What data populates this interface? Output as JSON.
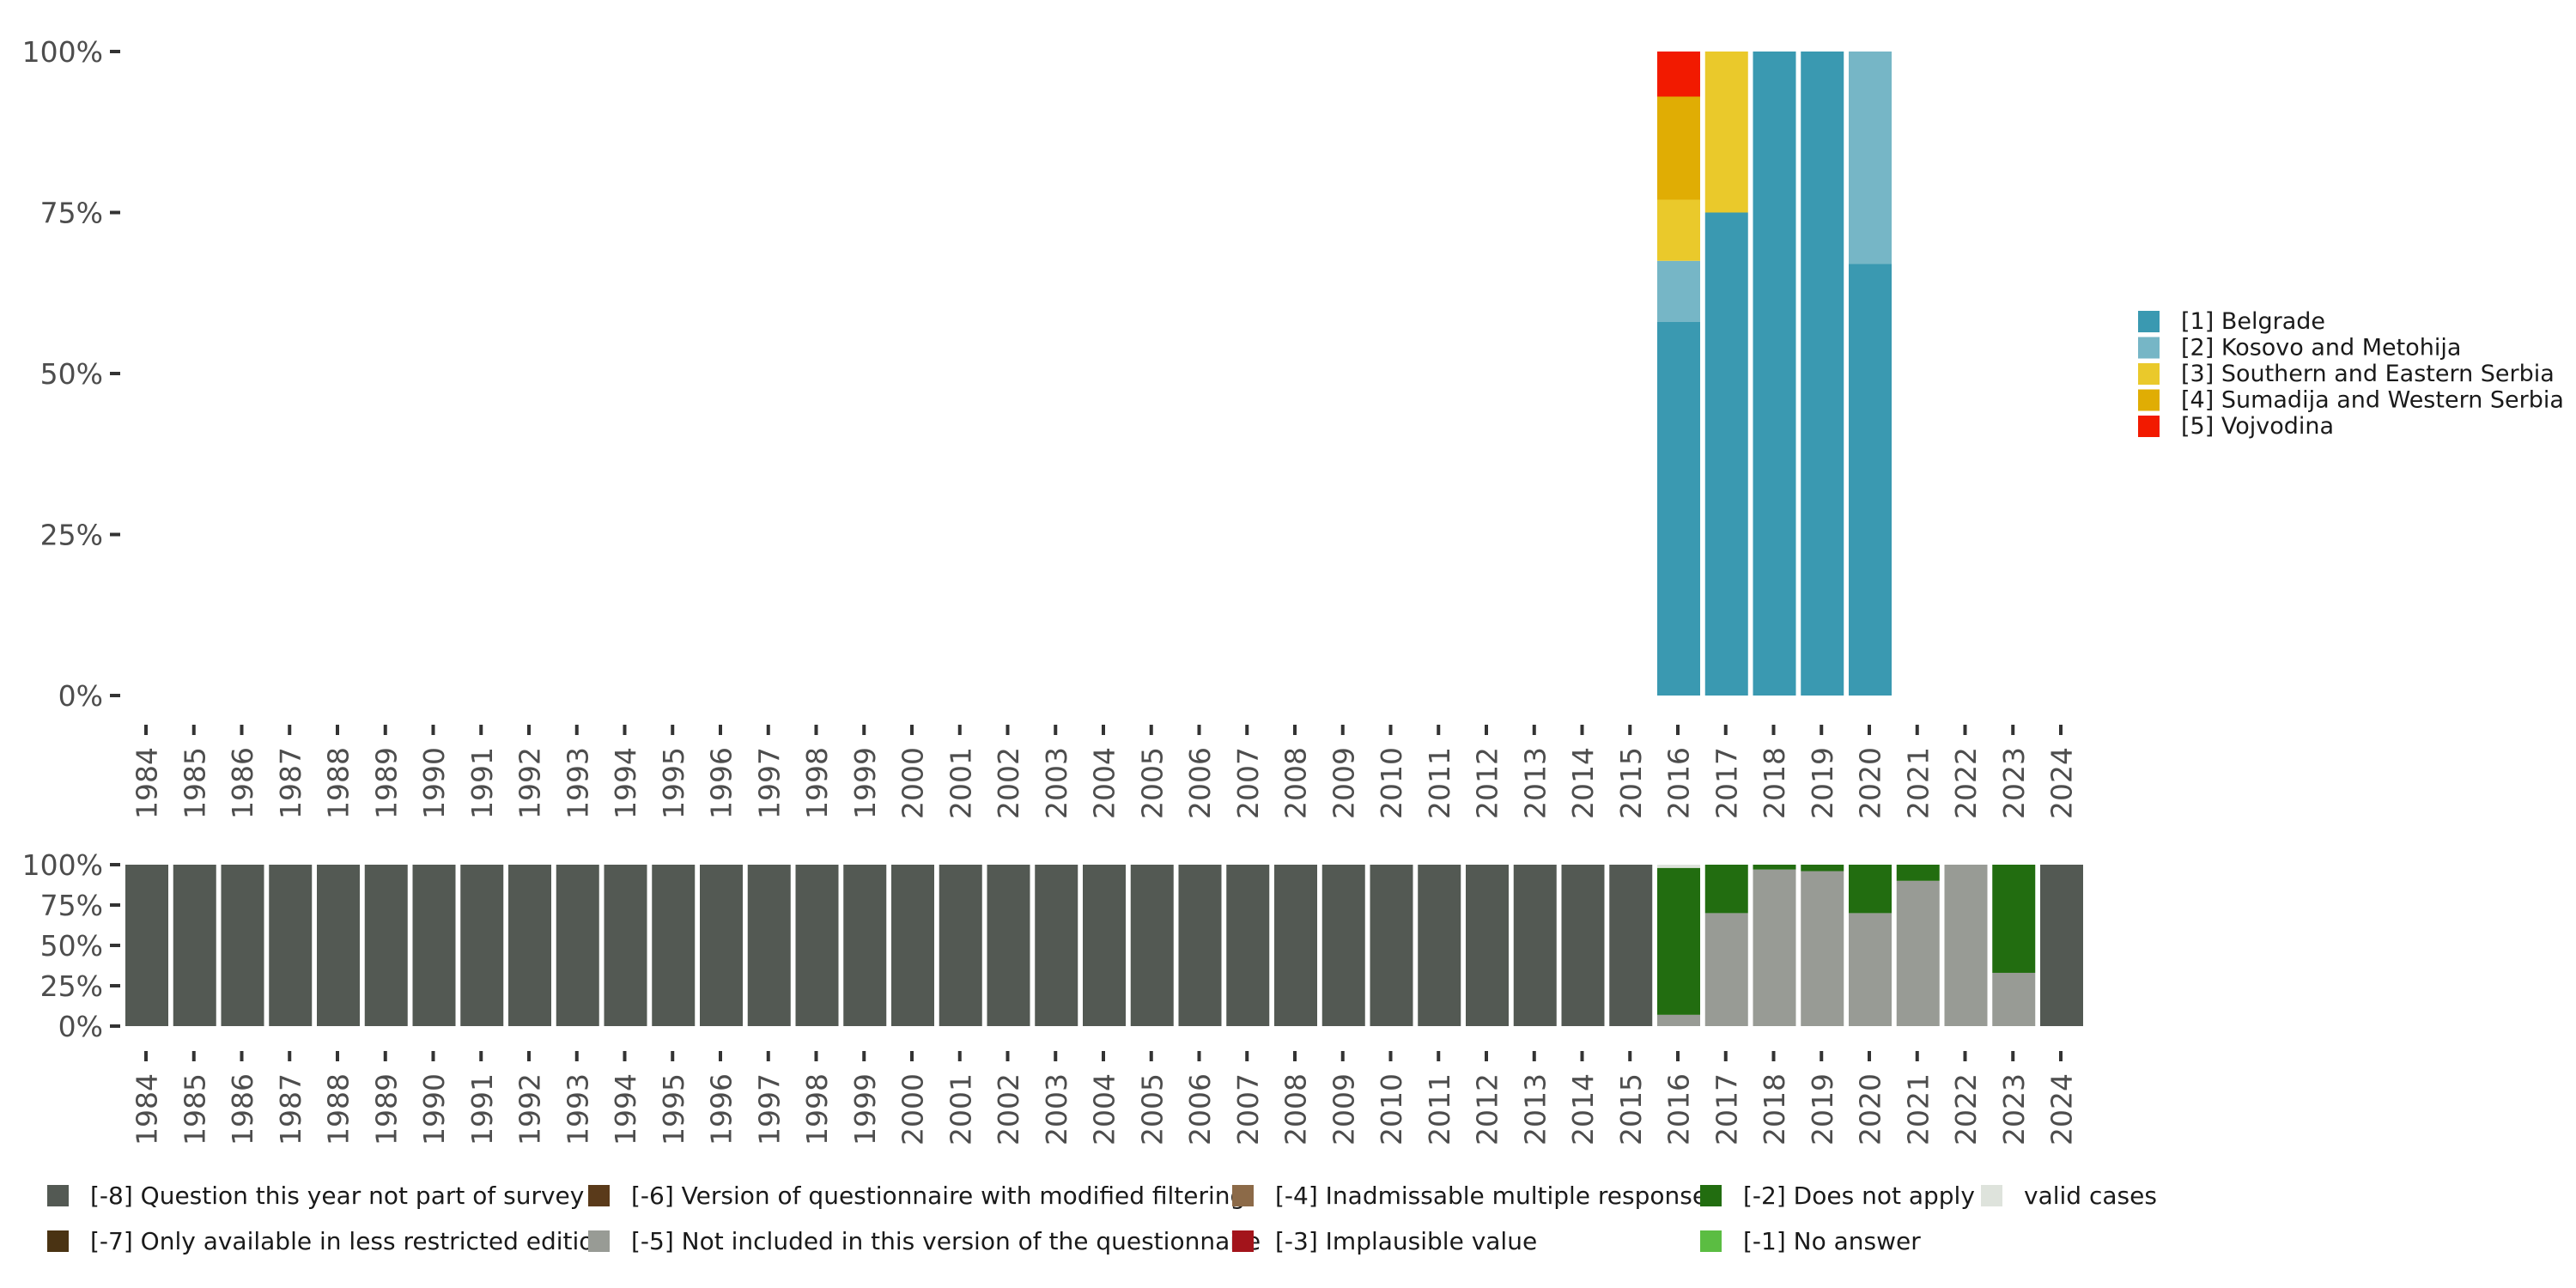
{
  "chart_data": [
    {
      "type": "bar",
      "stacked": true,
      "name": "valid-responses",
      "x": [
        "1984",
        "1985",
        "1986",
        "1987",
        "1988",
        "1989",
        "1990",
        "1991",
        "1992",
        "1993",
        "1994",
        "1995",
        "1996",
        "1997",
        "1998",
        "1999",
        "2000",
        "2001",
        "2002",
        "2003",
        "2004",
        "2005",
        "2006",
        "2007",
        "2008",
        "2009",
        "2010",
        "2011",
        "2012",
        "2013",
        "2014",
        "2015",
        "2016",
        "2017",
        "2018",
        "2019",
        "2020",
        "2021",
        "2022",
        "2023",
        "2024"
      ],
      "ylim": [
        0,
        100
      ],
      "yticks": [
        "0%",
        "25%",
        "50%",
        "75%",
        "100%"
      ],
      "series": [
        {
          "name": "[1] Belgrade",
          "color": "#3a99b1",
          "values": {
            "2016": 58,
            "2017": 75,
            "2018": 100,
            "2019": 100,
            "2020": 67
          }
        },
        {
          "name": "[2] Kosovo and Metohija",
          "color": "#76b6c6",
          "values": {
            "2016": 9.5,
            "2020": 33
          }
        },
        {
          "name": "[3] Southern and Eastern Serbia",
          "color": "#eac92b",
          "values": {
            "2016": 9.5,
            "2017": 25
          }
        },
        {
          "name": "[4] Sumadija and Western Serbia",
          "color": "#e0ad04",
          "values": {
            "2016": 16
          }
        },
        {
          "name": "[5] Vojvodina",
          "color": "#f21a00",
          "values": {
            "2016": 7
          }
        }
      ],
      "legend": "right"
    },
    {
      "type": "bar",
      "stacked": true,
      "name": "missing-codes",
      "x": [
        "1984",
        "1985",
        "1986",
        "1987",
        "1988",
        "1989",
        "1990",
        "1991",
        "1992",
        "1993",
        "1994",
        "1995",
        "1996",
        "1997",
        "1998",
        "1999",
        "2000",
        "2001",
        "2002",
        "2003",
        "2004",
        "2005",
        "2006",
        "2007",
        "2008",
        "2009",
        "2010",
        "2011",
        "2012",
        "2013",
        "2014",
        "2015",
        "2016",
        "2017",
        "2018",
        "2019",
        "2020",
        "2021",
        "2022",
        "2023",
        "2024"
      ],
      "ylim": [
        0,
        100
      ],
      "yticks": [
        "0%",
        "25%",
        "50%",
        "75%",
        "100%"
      ],
      "series": [
        {
          "name": "[-8] Question this year not part of survey",
          "color": "#535953",
          "values": {
            "1984": 100,
            "1985": 100,
            "1986": 100,
            "1987": 100,
            "1988": 100,
            "1989": 100,
            "1990": 100,
            "1991": 100,
            "1992": 100,
            "1993": 100,
            "1994": 100,
            "1995": 100,
            "1996": 100,
            "1997": 100,
            "1998": 100,
            "1999": 100,
            "2000": 100,
            "2001": 100,
            "2002": 100,
            "2003": 100,
            "2004": 100,
            "2005": 100,
            "2006": 100,
            "2007": 100,
            "2008": 100,
            "2009": 100,
            "2010": 100,
            "2011": 100,
            "2012": 100,
            "2013": 100,
            "2014": 100,
            "2015": 100,
            "2024": 100
          }
        },
        {
          "name": "[-7] Only available in less restricted edition",
          "color": "#4a3313",
          "values": {}
        },
        {
          "name": "[-6] Version of questionnaire with modified filtering",
          "color": "#5a3a1a",
          "values": {}
        },
        {
          "name": "[-5] Not included in this version of the questionnaire",
          "color": "#989b95",
          "values": {
            "2016": 7,
            "2017": 70,
            "2018": 97,
            "2019": 96,
            "2020": 70,
            "2021": 90,
            "2022": 100,
            "2023": 33
          }
        },
        {
          "name": "[-4] Inadmissable multiple response",
          "color": "#8c6a48",
          "values": {}
        },
        {
          "name": "[-3] Implausible value",
          "color": "#a3141b",
          "values": {}
        },
        {
          "name": "[-2] Does not apply",
          "color": "#226d10",
          "values": {
            "2016": 91,
            "2017": 30,
            "2018": 3,
            "2019": 4,
            "2020": 30,
            "2021": 10,
            "2023": 67
          }
        },
        {
          "name": "[-1] No answer",
          "color": "#5bbd42",
          "values": {}
        },
        {
          "name": "valid cases",
          "color": "#dee3dc",
          "values": {
            "2016": 2
          }
        }
      ],
      "legend": "bottom"
    }
  ]
}
